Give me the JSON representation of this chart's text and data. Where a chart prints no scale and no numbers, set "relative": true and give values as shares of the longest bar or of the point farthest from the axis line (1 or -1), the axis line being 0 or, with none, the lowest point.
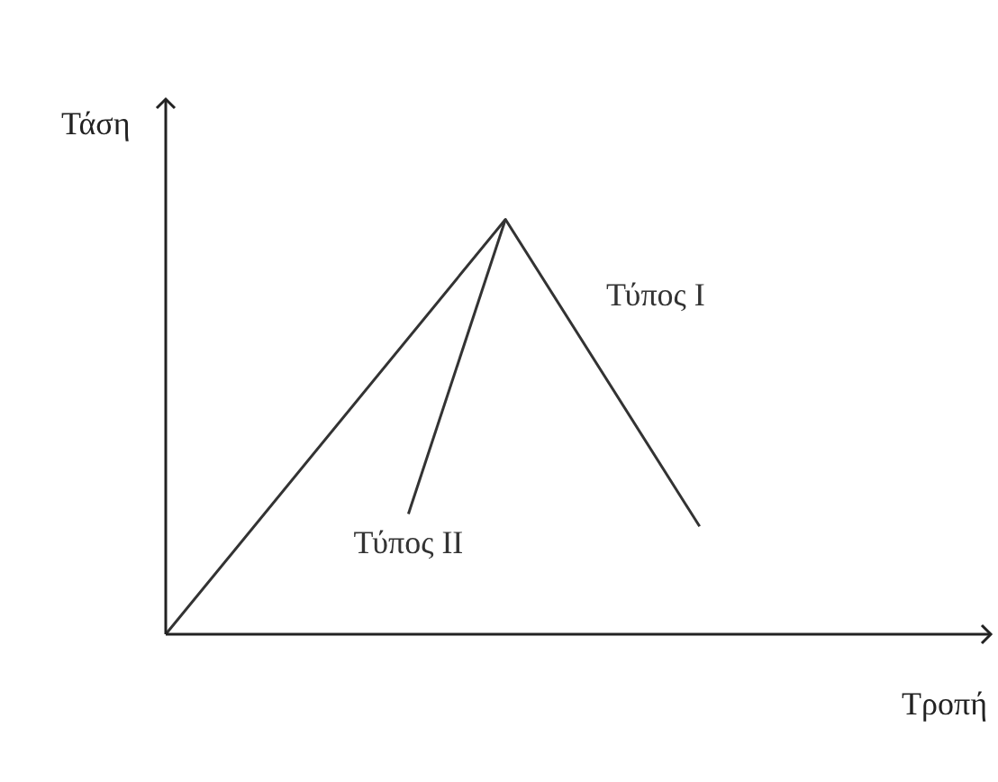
{
  "chart_data": {
    "type": "line",
    "relative": true,
    "xlabel": "Τροπή",
    "ylabel": "Τάση",
    "legend": false,
    "marker": "none",
    "line_style": "solid",
    "categories": [
      null,
      null,
      null,
      null,
      null,
      null,
      null,
      null,
      null,
      null,
      null,
      null,
      null,
      null,
      null,
      null,
      null,
      null
    ],
    "series": [
      {
        "name": "Τύπος Ι",
        "color": "#333333",
        "values": [
          0,
          null,
          null,
          null,
          null,
          null,
          null,
          1,
          null,
          null,
          null,
          0.26,
          null,
          null,
          null,
          null,
          null,
          null
        ]
      },
      {
        "name": "Τύπος ΙΙ",
        "color": "#333333",
        "values": [
          null,
          null,
          null,
          null,
          null,
          0.29,
          null,
          1,
          null,
          null,
          null,
          null,
          null,
          null,
          null,
          null,
          null,
          null
        ]
      }
    ]
  }
}
